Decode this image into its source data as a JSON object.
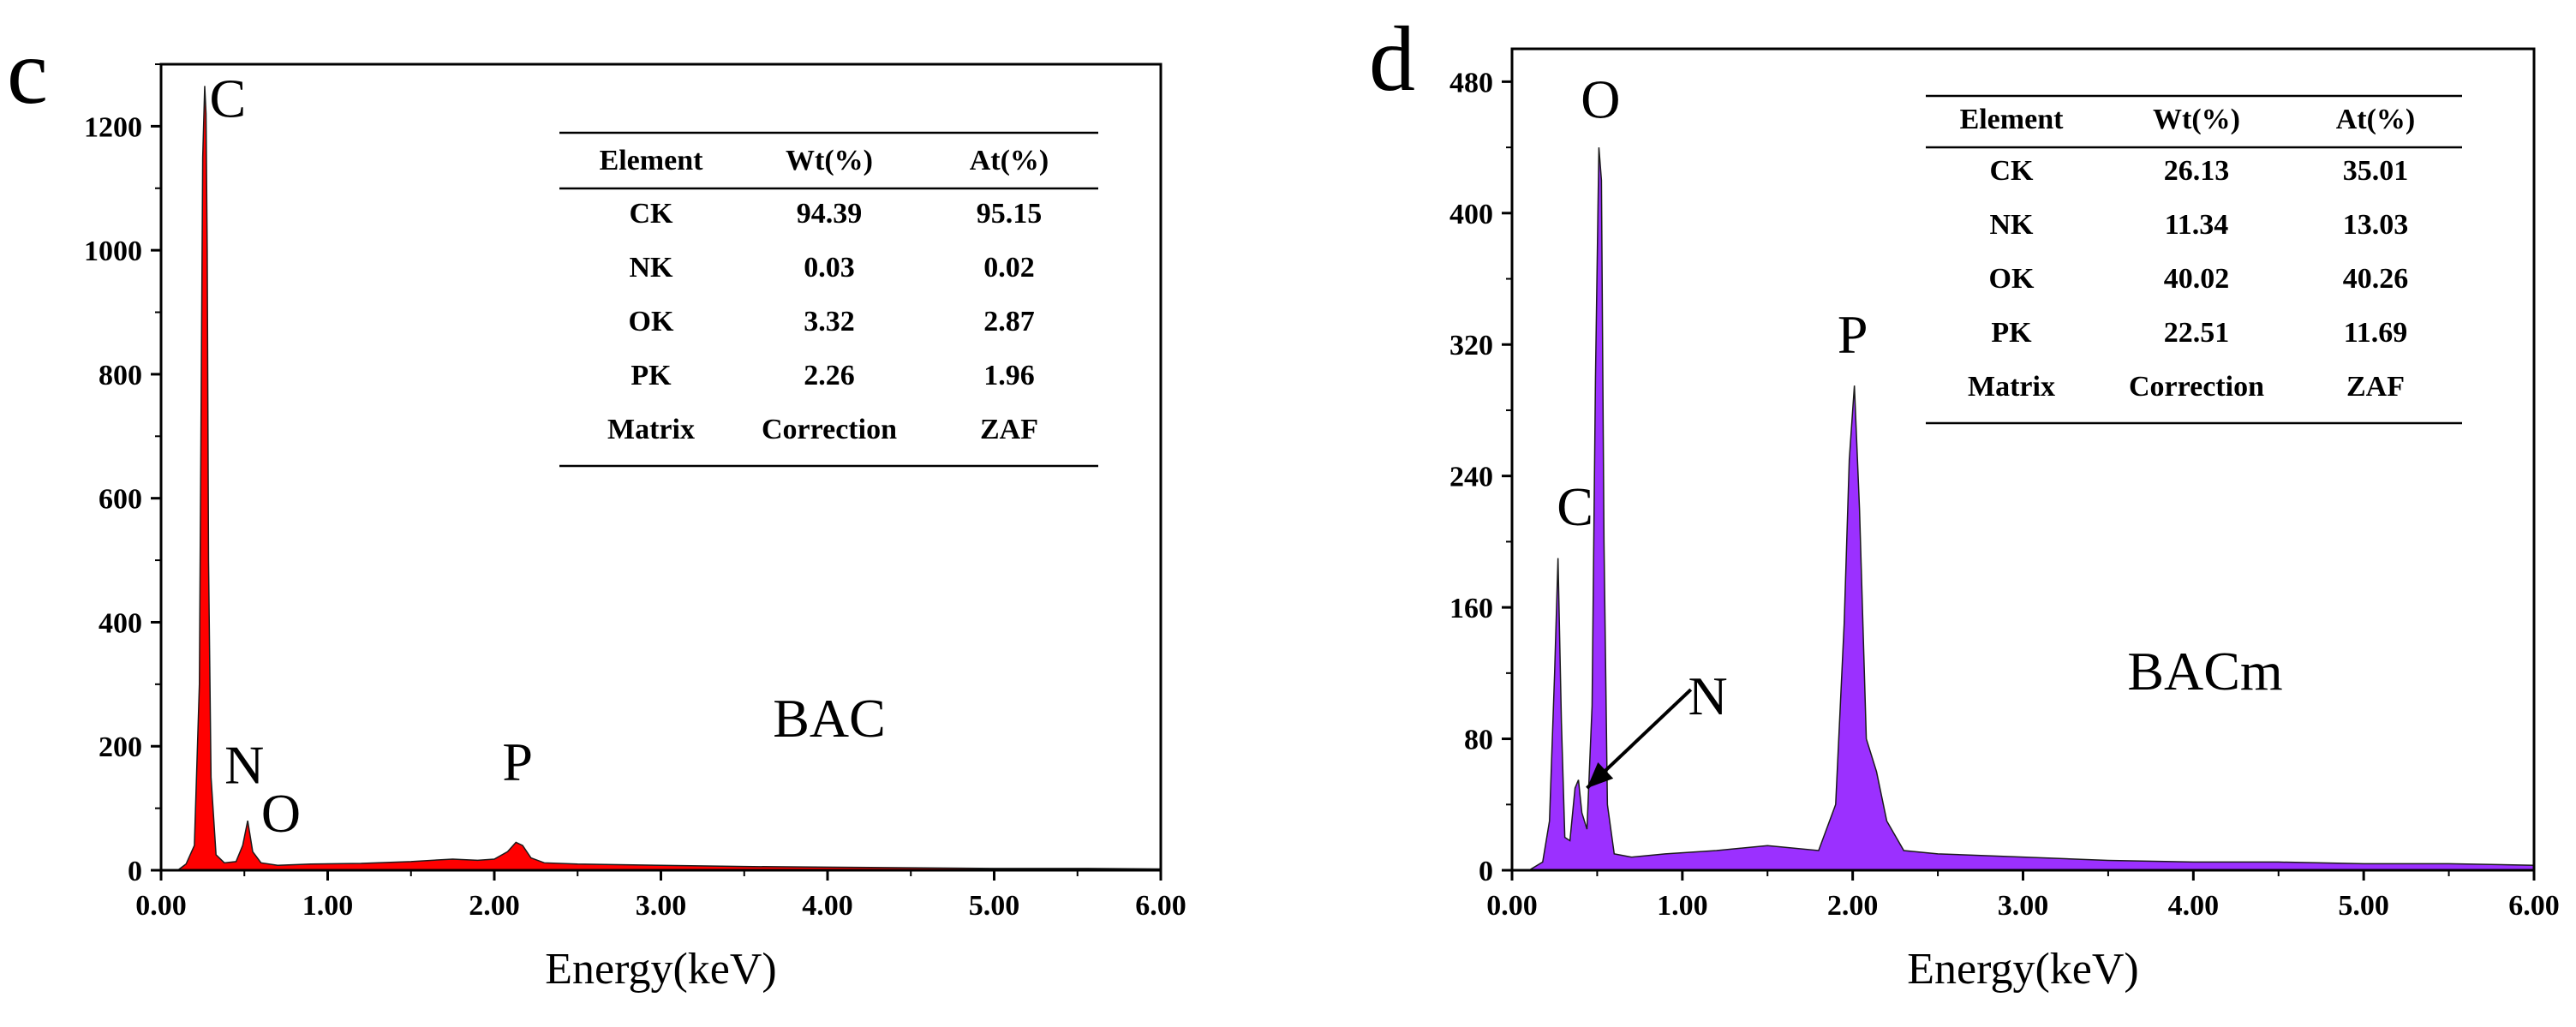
{
  "chart_data": [
    {
      "type": "area",
      "panel_label": "c",
      "sample_label": "BAC",
      "xlabel": "Energy(keV)",
      "ylabel": "",
      "xlim": [
        0,
        6
      ],
      "ylim": [
        0,
        1300
      ],
      "xticks": [
        0,
        1,
        2,
        3,
        4,
        5,
        6
      ],
      "xtick_labels": [
        "0.00",
        "1.00",
        "2.00",
        "3.00",
        "4.00",
        "5.00",
        "6.00"
      ],
      "yticks": [
        0,
        200,
        400,
        600,
        800,
        1000,
        1200
      ],
      "ytick_labels": [
        "0",
        "200",
        "400",
        "600",
        "800",
        "1000",
        "1200"
      ],
      "fill_color": "#ff0000",
      "series": [
        {
          "name": "BAC spectrum",
          "x": [
            0.1,
            0.15,
            0.2,
            0.23,
            0.25,
            0.262,
            0.27,
            0.277,
            0.285,
            0.3,
            0.33,
            0.38,
            0.45,
            0.49,
            0.52,
            0.55,
            0.6,
            0.7,
            0.9,
            1.2,
            1.5,
            1.75,
            1.9,
            2.0,
            2.08,
            2.13,
            2.17,
            2.22,
            2.3,
            2.5,
            3.0,
            3.5,
            4.0,
            4.5,
            5.0,
            5.5,
            6.0
          ],
          "values": [
            0,
            10,
            40,
            300,
            1150,
            1265,
            1220,
            1000,
            500,
            150,
            25,
            12,
            14,
            40,
            80,
            30,
            12,
            8,
            10,
            11,
            14,
            18,
            16,
            18,
            30,
            45,
            40,
            20,
            12,
            10,
            8,
            6,
            5,
            4,
            3,
            3,
            2
          ]
        }
      ],
      "peak_labels": [
        {
          "text": "C",
          "x": 0.4,
          "y": 1215
        },
        {
          "text": "N",
          "x": 0.5,
          "y": 140
        },
        {
          "text": "O",
          "x": 0.72,
          "y": 62
        },
        {
          "text": "P",
          "x": 2.14,
          "y": 145
        }
      ],
      "table": {
        "headers": [
          "Element",
          "Wt(%)",
          "At(%)"
        ],
        "rows": [
          [
            "CK",
            "94.39",
            "95.15"
          ],
          [
            "NK",
            "0.03",
            "0.02"
          ],
          [
            "OK",
            "3.32",
            "2.87"
          ],
          [
            "PK",
            "2.26",
            "1.96"
          ],
          [
            "Matrix",
            "Correction",
            "ZAF"
          ]
        ]
      }
    },
    {
      "type": "area",
      "panel_label": "d",
      "sample_label": "BACm",
      "xlabel": "Energy(keV)",
      "ylabel": "",
      "xlim": [
        0,
        6
      ],
      "ylim": [
        0,
        500
      ],
      "xticks": [
        0,
        1,
        2,
        3,
        4,
        5,
        6
      ],
      "xtick_labels": [
        "0.00",
        "1.00",
        "2.00",
        "3.00",
        "4.00",
        "5.00",
        "6.00"
      ],
      "yticks": [
        0,
        80,
        160,
        240,
        320,
        400,
        480
      ],
      "ytick_labels": [
        "0",
        "80",
        "160",
        "240",
        "320",
        "400",
        "480"
      ],
      "fill_color": "#9b30ff",
      "series": [
        {
          "name": "BACm spectrum",
          "x": [
            0.1,
            0.18,
            0.22,
            0.25,
            0.27,
            0.29,
            0.31,
            0.34,
            0.37,
            0.39,
            0.41,
            0.44,
            0.47,
            0.49,
            0.51,
            0.525,
            0.54,
            0.56,
            0.6,
            0.7,
            0.9,
            1.2,
            1.5,
            1.8,
            1.9,
            1.95,
            1.98,
            2.01,
            2.04,
            2.08,
            2.14,
            2.2,
            2.3,
            2.5,
            3.0,
            3.5,
            4.0,
            4.5,
            5.0,
            5.5,
            6.0
          ],
          "values": [
            0,
            5,
            30,
            120,
            190,
            90,
            20,
            18,
            50,
            55,
            35,
            25,
            100,
            300,
            440,
            420,
            200,
            40,
            10,
            8,
            10,
            12,
            15,
            12,
            40,
            150,
            250,
            295,
            220,
            80,
            60,
            30,
            12,
            10,
            8,
            6,
            5,
            5,
            4,
            4,
            3
          ]
        }
      ],
      "peak_labels": [
        {
          "text": "O",
          "x": 0.52,
          "y": 458
        },
        {
          "text": "P",
          "x": 2.0,
          "y": 315
        },
        {
          "text": "C",
          "x": 0.37,
          "y": 210
        },
        {
          "text": "N",
          "x": 1.15,
          "y": 95
        }
      ],
      "arrow": {
        "from": [
          1.05,
          110
        ],
        "to": [
          0.44,
          50
        ]
      },
      "table": {
        "headers": [
          "Element",
          "Wt(%)",
          "At(%)"
        ],
        "rows": [
          [
            "CK",
            "26.13",
            "35.01"
          ],
          [
            "NK",
            "11.34",
            "13.03"
          ],
          [
            "OK",
            "40.02",
            "40.26"
          ],
          [
            "PK",
            "22.51",
            "11.69"
          ],
          [
            "Matrix",
            "Correction",
            "ZAF"
          ]
        ]
      }
    }
  ]
}
